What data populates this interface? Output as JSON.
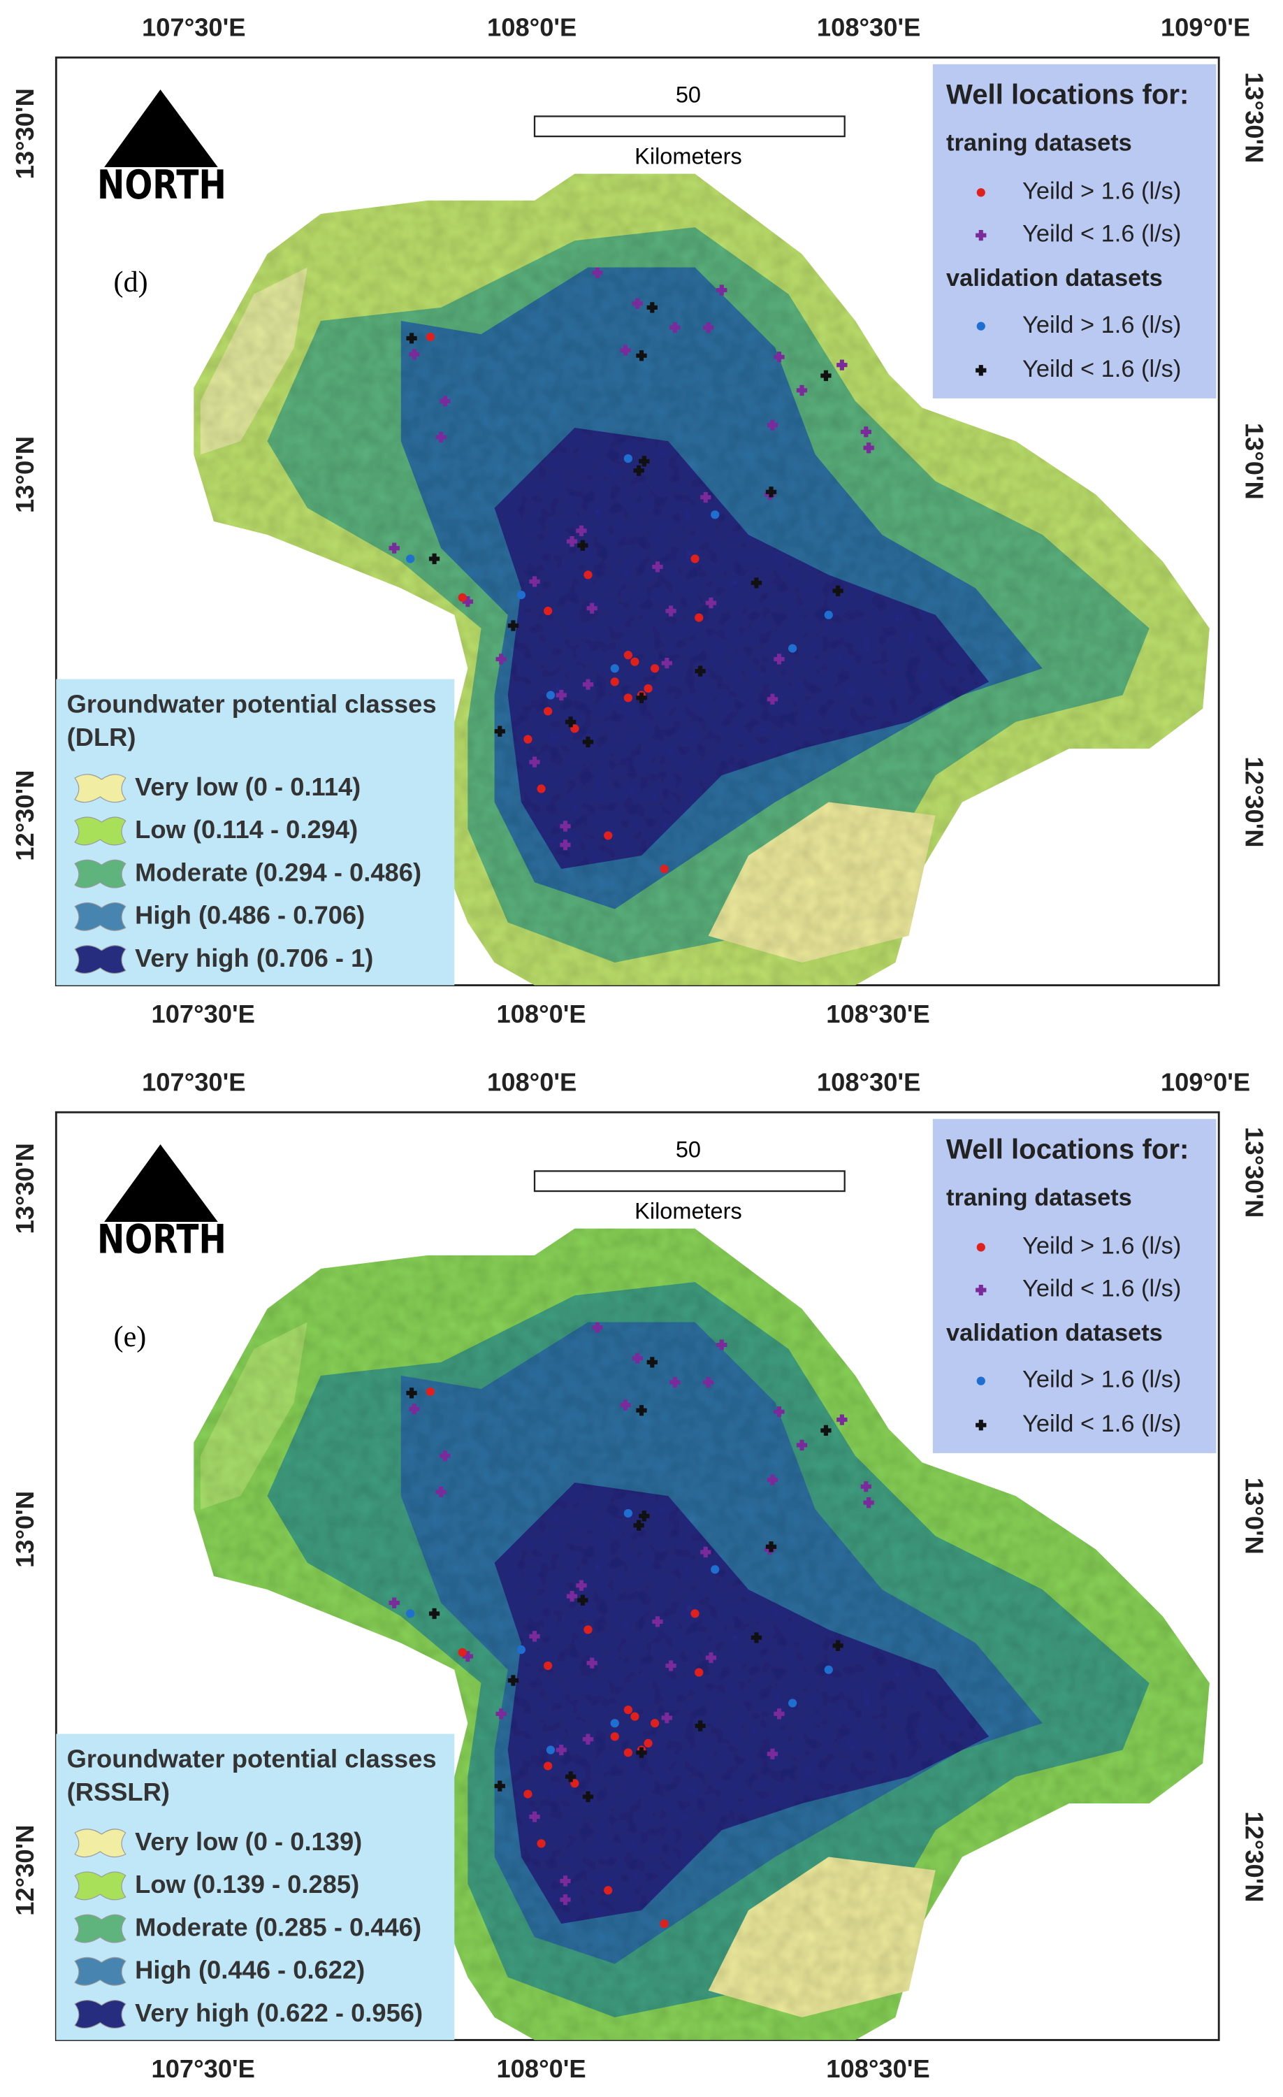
{
  "panels": [
    {
      "panel_label": "(d)",
      "top_axis_labels": [
        "107°30'E",
        "108°0'E",
        "108°30'E",
        "109°0'E"
      ],
      "bottom_axis_labels": [
        "107°30'E",
        "108°0'E",
        "108°30'E"
      ],
      "left_axis_labels": [
        "13°30'N",
        "13°0'N",
        "12°30'N"
      ],
      "right_axis_labels": [
        "13°30'N",
        "13°0'N",
        "12°30'N"
      ],
      "north_label": "NORTH",
      "scale_bar": {
        "distance": "50",
        "unit": "Kilometers"
      },
      "well_legend": {
        "title": "Well locations for:",
        "groups": [
          {
            "heading": "traning datasets",
            "items": [
              "Yeild > 1.6 (l/s)",
              "Yeild < 1.6 (l/s)"
            ]
          },
          {
            "heading": "validation datasets",
            "items": [
              "Yeild > 1.6 (l/s)",
              "Yeild < 1.6 (l/s)"
            ]
          }
        ]
      },
      "class_legend": {
        "title": "Groundwater potential classes",
        "method": "(DLR)",
        "classes": [
          "Very low (0 - 0.114)",
          "Low (0.114 - 0.294)",
          "Moderate (0.294 - 0.486)",
          "High (0.486 - 0.706)",
          "Very high (0.706 - 1)"
        ]
      }
    },
    {
      "panel_label": "(e)",
      "top_axis_labels": [
        "107°30'E",
        "108°0'E",
        "108°30'E",
        "109°0'E"
      ],
      "bottom_axis_labels": [
        "107°30'E",
        "108°0'E",
        "108°30'E"
      ],
      "left_axis_labels": [
        "13°30'N",
        "13°0'N",
        "12°30'N"
      ],
      "right_axis_labels": [
        "13°30'N",
        "13°0'N",
        "12°30'N"
      ],
      "north_label": "NORTH",
      "scale_bar": {
        "distance": "50",
        "unit": "Kilometers"
      },
      "well_legend": {
        "title": "Well locations for:",
        "groups": [
          {
            "heading": "traning datasets",
            "items": [
              "Yeild > 1.6 (l/s)",
              "Yeild < 1.6 (l/s)"
            ]
          },
          {
            "heading": "validation datasets",
            "items": [
              "Yeild > 1.6 (l/s)",
              "Yeild < 1.6 (l/s)"
            ]
          }
        ]
      },
      "class_legend": {
        "title": "Groundwater potential classes",
        "method": "(RSSLR)",
        "classes": [
          "Very low (0 - 0.139)",
          "Low (0.139 - 0.285)",
          "Moderate (0.285 - 0.446)",
          "High (0.446 - 0.622)",
          "Very high (0.622 - 0.956)"
        ]
      }
    }
  ]
}
